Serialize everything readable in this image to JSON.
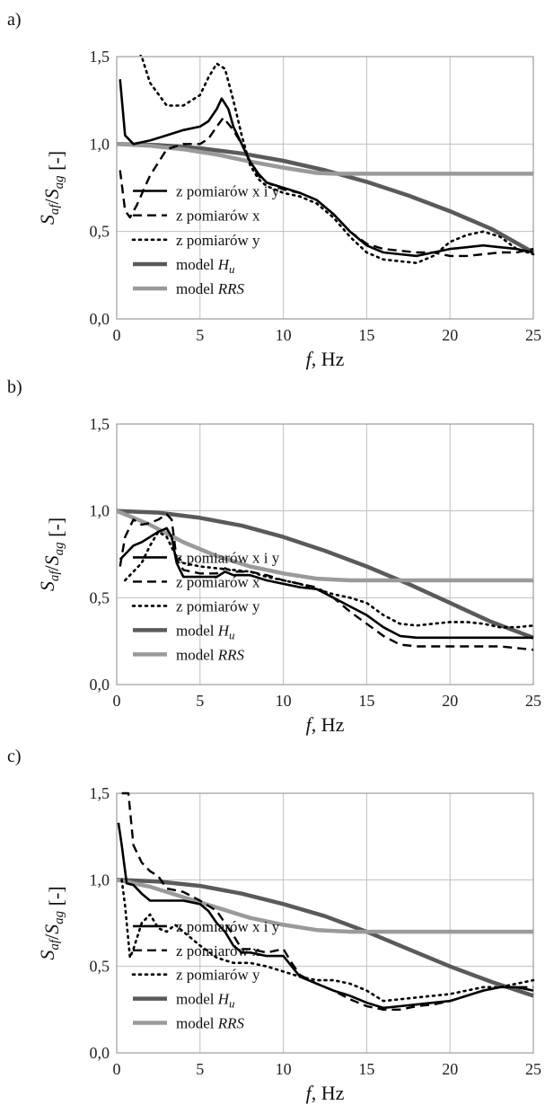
{
  "chart_data": [
    {
      "panel": "a)",
      "type": "line",
      "xlabel": "f, Hz",
      "ylabel": "Saf/Sag [-]",
      "xlim": [
        0,
        25
      ],
      "ylim": [
        0,
        1.5
      ],
      "xticks": [
        "0",
        "5",
        "10",
        "15",
        "20",
        "25"
      ],
      "yticks": [
        "0,0",
        "0,5",
        "1,0",
        "1,5"
      ],
      "grid": true,
      "legend_position": "left",
      "series": [
        {
          "name": "z pomiarów x i y",
          "style": "solid-thin",
          "color": "#000000",
          "x": [
            0.2,
            0.5,
            1,
            2,
            3,
            4,
            5,
            5.5,
            6,
            6.3,
            6.7,
            7,
            7.5,
            8,
            8.5,
            9,
            10,
            11,
            12,
            13,
            14,
            15,
            16,
            17,
            18,
            19,
            20,
            21,
            22,
            23,
            24,
            25
          ],
          "y": [
            1.37,
            1.05,
            1.0,
            1.02,
            1.05,
            1.08,
            1.1,
            1.13,
            1.2,
            1.26,
            1.2,
            1.1,
            1.0,
            0.9,
            0.83,
            0.78,
            0.75,
            0.72,
            0.68,
            0.6,
            0.5,
            0.42,
            0.38,
            0.37,
            0.36,
            0.38,
            0.4,
            0.41,
            0.42,
            0.41,
            0.4,
            0.38
          ]
        },
        {
          "name": "z pomiarów x",
          "style": "dashed",
          "color": "#000000",
          "x": [
            0.2,
            0.5,
            0.8,
            1.2,
            2,
            3,
            4,
            5,
            5.5,
            6,
            6.4,
            7,
            7.5,
            8,
            8.5,
            9,
            10,
            11,
            12,
            13,
            14,
            15,
            16,
            17,
            18,
            19,
            20,
            21,
            22,
            23,
            24,
            25
          ],
          "y": [
            0.85,
            0.62,
            0.58,
            0.65,
            0.82,
            0.97,
            1.0,
            1.0,
            1.03,
            1.1,
            1.15,
            1.08,
            1.0,
            0.9,
            0.82,
            0.78,
            0.74,
            0.72,
            0.68,
            0.6,
            0.5,
            0.43,
            0.4,
            0.39,
            0.38,
            0.38,
            0.36,
            0.36,
            0.37,
            0.38,
            0.38,
            0.4
          ]
        },
        {
          "name": "z pomiarów y",
          "style": "dotted",
          "color": "#000000",
          "x": [
            1,
            1.5,
            2,
            3,
            4,
            5,
            5.5,
            6,
            6.5,
            7,
            7.5,
            8,
            8.5,
            9,
            10,
            11,
            12,
            13,
            14,
            15,
            16,
            17,
            18,
            19,
            20,
            21,
            22,
            23,
            24,
            25
          ],
          "y": [
            1.58,
            1.5,
            1.35,
            1.22,
            1.22,
            1.28,
            1.38,
            1.46,
            1.43,
            1.25,
            1.05,
            0.88,
            0.8,
            0.76,
            0.72,
            0.7,
            0.66,
            0.58,
            0.47,
            0.38,
            0.34,
            0.33,
            0.32,
            0.36,
            0.44,
            0.48,
            0.5,
            0.47,
            0.4,
            0.37
          ]
        },
        {
          "name": "model Hu",
          "style": "solid-thick",
          "color": "#5a5a5a",
          "x": [
            0,
            2.5,
            5,
            7.5,
            10,
            12.5,
            15,
            17.5,
            20,
            22.5,
            25
          ],
          "y": [
            1.0,
            0.994,
            0.976,
            0.946,
            0.904,
            0.85,
            0.784,
            0.706,
            0.616,
            0.514,
            0.38
          ]
        },
        {
          "name": "model RRS",
          "style": "solid-thick",
          "color": "#9a9a9a",
          "x": [
            0,
            2,
            4,
            6,
            8,
            10,
            12,
            13,
            14,
            16,
            18,
            20,
            22,
            24,
            25
          ],
          "y": [
            1.0,
            0.99,
            0.97,
            0.94,
            0.9,
            0.865,
            0.835,
            0.83,
            0.83,
            0.83,
            0.83,
            0.83,
            0.83,
            0.83,
            0.83
          ]
        }
      ]
    },
    {
      "panel": "b)",
      "type": "line",
      "xlabel": "f, Hz",
      "ylabel": "Saf/Sag [-]",
      "xlim": [
        0,
        25
      ],
      "ylim": [
        0,
        1.5
      ],
      "xticks": [
        "0",
        "5",
        "10",
        "15",
        "20",
        "25"
      ],
      "yticks": [
        "0,0",
        "0,5",
        "1,0",
        "1,5"
      ],
      "grid": true,
      "legend_position": "left",
      "series": [
        {
          "name": "z pomiarów x i y",
          "style": "solid-thin",
          "color": "#000000",
          "x": [
            0.2,
            0.5,
            1,
            1.5,
            2,
            2.5,
            3,
            3.3,
            3.6,
            4,
            5,
            6,
            6.5,
            7,
            8,
            9,
            10,
            11,
            12,
            13,
            14,
            15,
            16,
            17,
            18,
            19,
            20,
            21,
            22,
            23,
            24,
            25
          ],
          "y": [
            0.72,
            0.75,
            0.8,
            0.82,
            0.85,
            0.88,
            0.9,
            0.85,
            0.7,
            0.62,
            0.62,
            0.62,
            0.65,
            0.63,
            0.63,
            0.6,
            0.58,
            0.56,
            0.55,
            0.5,
            0.45,
            0.4,
            0.33,
            0.28,
            0.27,
            0.27,
            0.27,
            0.27,
            0.27,
            0.27,
            0.27,
            0.27
          ]
        },
        {
          "name": "z pomiarów x",
          "style": "dashed",
          "color": "#000000",
          "x": [
            0.2,
            0.5,
            1,
            1.5,
            2,
            2.5,
            3,
            3.3,
            3.6,
            4,
            5,
            6,
            6.5,
            7,
            8,
            9,
            10,
            11,
            12,
            13,
            14,
            15,
            16,
            17,
            18,
            19,
            20,
            21,
            22,
            23,
            24,
            25
          ],
          "y": [
            0.68,
            0.85,
            0.95,
            0.92,
            0.93,
            0.95,
            0.98,
            0.95,
            0.72,
            0.66,
            0.64,
            0.64,
            0.67,
            0.65,
            0.65,
            0.63,
            0.6,
            0.58,
            0.56,
            0.5,
            0.42,
            0.35,
            0.28,
            0.23,
            0.22,
            0.22,
            0.22,
            0.22,
            0.22,
            0.22,
            0.21,
            0.2
          ]
        },
        {
          "name": "z pomiarów y",
          "style": "dotted",
          "color": "#000000",
          "x": [
            0.5,
            1,
            1.5,
            2,
            2.5,
            3,
            3.5,
            4,
            5,
            6,
            7,
            8,
            9,
            10,
            11,
            12,
            13,
            14,
            15,
            16,
            17,
            18,
            19,
            20,
            21,
            22,
            23,
            24,
            25
          ],
          "y": [
            0.6,
            0.65,
            0.7,
            0.8,
            0.88,
            0.85,
            0.75,
            0.7,
            0.68,
            0.67,
            0.66,
            0.65,
            0.62,
            0.6,
            0.58,
            0.55,
            0.52,
            0.5,
            0.47,
            0.4,
            0.35,
            0.34,
            0.35,
            0.36,
            0.36,
            0.35,
            0.33,
            0.33,
            0.34
          ]
        },
        {
          "name": "model Hu",
          "style": "solid-thick",
          "color": "#5a5a5a",
          "x": [
            0,
            2.5,
            5,
            7.5,
            10,
            12.5,
            15,
            17.5,
            20,
            22.5,
            25
          ],
          "y": [
            1.0,
            0.99,
            0.96,
            0.915,
            0.85,
            0.77,
            0.68,
            0.58,
            0.47,
            0.36,
            0.27
          ]
        },
        {
          "name": "model RRS",
          "style": "solid-thick",
          "color": "#9a9a9a",
          "x": [
            0,
            2,
            4,
            6,
            8,
            10,
            12,
            14,
            16,
            18,
            20,
            22,
            24,
            25
          ],
          "y": [
            1.0,
            0.92,
            0.82,
            0.74,
            0.68,
            0.64,
            0.61,
            0.6,
            0.6,
            0.6,
            0.6,
            0.6,
            0.6,
            0.6
          ]
        }
      ]
    },
    {
      "panel": "c)",
      "type": "line",
      "xlabel": "f, Hz",
      "ylabel": "Saf/Sag [-]",
      "xlim": [
        0,
        25
      ],
      "ylim": [
        0,
        1.5
      ],
      "xticks": [
        "0",
        "5",
        "10",
        "15",
        "20",
        "25"
      ],
      "yticks": [
        "0,0",
        "0,5",
        "1,0",
        "1,5"
      ],
      "grid": true,
      "legend_position": "left",
      "series": [
        {
          "name": "z pomiarów x i y",
          "style": "solid-thin",
          "color": "#000000",
          "x": [
            0.1,
            0.3,
            0.6,
            1,
            1.5,
            2,
            3,
            4,
            5,
            5.5,
            6,
            6.5,
            7,
            7.5,
            8,
            9,
            10,
            10.5,
            11,
            12,
            13,
            14,
            15,
            16,
            17,
            18,
            19,
            20,
            21,
            22,
            23,
            24,
            25
          ],
          "y": [
            1.33,
            1.2,
            0.98,
            0.97,
            0.92,
            0.88,
            0.88,
            0.88,
            0.86,
            0.82,
            0.75,
            0.7,
            0.62,
            0.58,
            0.58,
            0.56,
            0.56,
            0.5,
            0.44,
            0.4,
            0.36,
            0.33,
            0.29,
            0.26,
            0.27,
            0.28,
            0.29,
            0.3,
            0.33,
            0.36,
            0.38,
            0.38,
            0.36
          ]
        },
        {
          "name": "z pomiarów x",
          "style": "dashed",
          "color": "#000000",
          "x": [
            0.3,
            0.7,
            1,
            1.5,
            2,
            2.5,
            3,
            4,
            5,
            6,
            6.5,
            7,
            7.5,
            8,
            9,
            10,
            10.5,
            11,
            12,
            13,
            14,
            15,
            16,
            17,
            18,
            19,
            20,
            21,
            22,
            23,
            24,
            25
          ],
          "y": [
            1.5,
            1.5,
            1.2,
            1.1,
            1.05,
            1.02,
            0.95,
            0.93,
            0.88,
            0.82,
            0.75,
            0.68,
            0.6,
            0.6,
            0.58,
            0.6,
            0.52,
            0.45,
            0.4,
            0.36,
            0.31,
            0.27,
            0.25,
            0.25,
            0.27,
            0.28,
            0.3,
            0.33,
            0.36,
            0.38,
            0.38,
            0.38
          ]
        },
        {
          "name": "z pomiarów y",
          "style": "dotted",
          "color": "#000000",
          "x": [
            0.3,
            0.5,
            0.8,
            1,
            1.5,
            2,
            2.5,
            3,
            3.5,
            4,
            5,
            6,
            7,
            8,
            9,
            10,
            11,
            12,
            13,
            14,
            15,
            16,
            17,
            18,
            19,
            20,
            21,
            22,
            23,
            24,
            25
          ],
          "y": [
            1.0,
            0.85,
            0.55,
            0.6,
            0.75,
            0.8,
            0.72,
            0.7,
            0.74,
            0.7,
            0.62,
            0.55,
            0.52,
            0.52,
            0.5,
            0.47,
            0.44,
            0.42,
            0.42,
            0.4,
            0.36,
            0.3,
            0.31,
            0.32,
            0.33,
            0.34,
            0.36,
            0.38,
            0.38,
            0.4,
            0.42
          ]
        },
        {
          "name": "model Hu",
          "style": "solid-thick",
          "color": "#5a5a5a",
          "x": [
            0,
            2.5,
            5,
            7.5,
            10,
            12.5,
            15,
            17.5,
            20,
            22.5,
            25
          ],
          "y": [
            1.0,
            0.99,
            0.965,
            0.92,
            0.86,
            0.79,
            0.7,
            0.6,
            0.5,
            0.41,
            0.33
          ]
        },
        {
          "name": "model RRS",
          "style": "solid-thick",
          "color": "#9a9a9a",
          "x": [
            0,
            2,
            4,
            6,
            8,
            10,
            12,
            14,
            16,
            18,
            20,
            22,
            24,
            25
          ],
          "y": [
            1.0,
            0.96,
            0.9,
            0.84,
            0.78,
            0.74,
            0.71,
            0.7,
            0.7,
            0.7,
            0.7,
            0.7,
            0.7,
            0.7
          ]
        }
      ]
    }
  ]
}
